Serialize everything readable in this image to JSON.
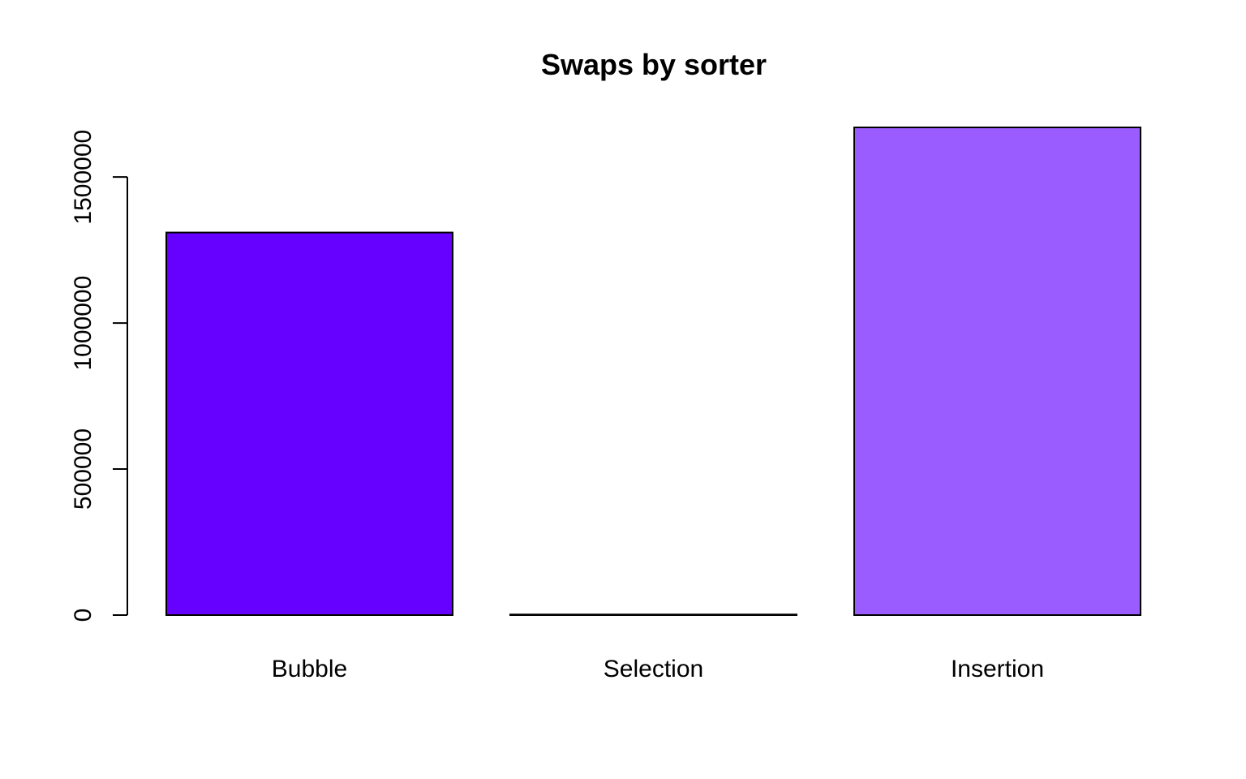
{
  "chart_data": {
    "type": "bar",
    "title": "Swaps by sorter",
    "xlabel": "",
    "ylabel": "",
    "categories": [
      "Bubble",
      "Selection",
      "Insertion"
    ],
    "values": [
      1310000,
      2000,
      1670000
    ],
    "colors": [
      "#6600ff",
      "#ffffff",
      "#9a5cff"
    ],
    "ylim": [
      0,
      1670000
    ],
    "yticks": [
      0,
      500000,
      1000000,
      1500000
    ],
    "ytick_labels": [
      "0",
      "500000",
      "1000000",
      "1500000"
    ],
    "grid": false,
    "legend": "none"
  }
}
